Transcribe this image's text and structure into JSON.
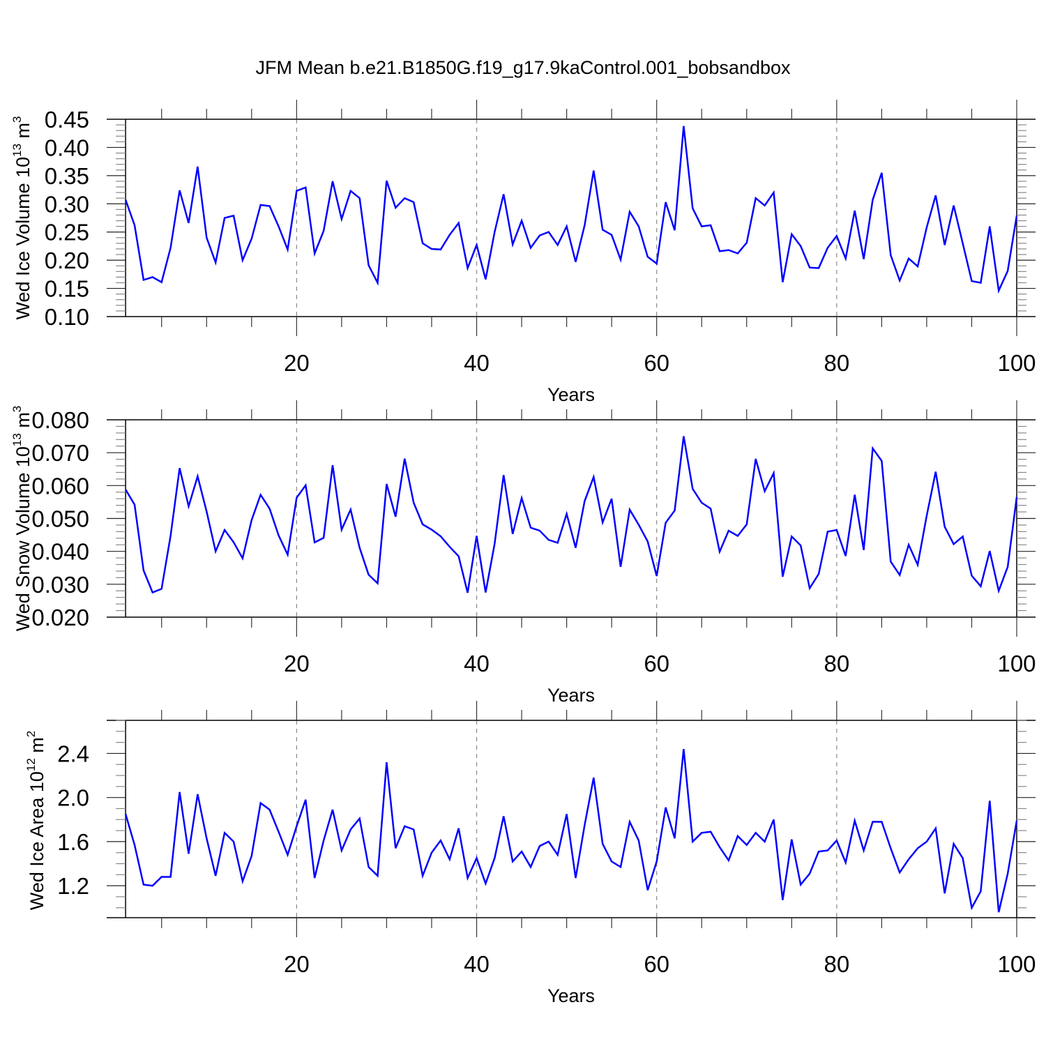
{
  "chart_data": {
    "title": "JFM Mean b.e21.B1850G.f19_g17.9kaControl.001_bobsandbox",
    "line_color": "#0000ff",
    "panels": [
      {
        "type": "line",
        "ylabel": "Wed Ice Volume 10",
        "ylabel_exp": "13",
        "ylabel_unit": " m",
        "ylabel_unit_exp": "3",
        "xlabel": "Years",
        "xlim": [
          -1.1,
          100
        ],
        "ylim": [
          0.1,
          0.45
        ],
        "yticks": [
          0.1,
          0.15,
          0.2,
          0.25,
          0.3,
          0.35,
          0.4,
          0.45
        ],
        "ytick_labels": [
          "0.10",
          "0.15",
          "0.20",
          "0.25",
          "0.30",
          "0.35",
          "0.40",
          "0.45"
        ],
        "yminor": 0.01,
        "xticks": [
          20,
          40,
          60,
          80,
          100
        ],
        "xtick_labels": [
          "20",
          "40",
          "60",
          "80",
          "100"
        ],
        "grid": "dashed vertical at major x ticks",
        "values": [
          0.307,
          0.262,
          0.165,
          0.17,
          0.161,
          0.222,
          0.324,
          0.266,
          0.366,
          0.24,
          0.196,
          0.275,
          0.279,
          0.2,
          0.238,
          0.298,
          0.296,
          0.26,
          0.219,
          0.323,
          0.329,
          0.212,
          0.252,
          0.34,
          0.273,
          0.323,
          0.31,
          0.191,
          0.16,
          0.341,
          0.293,
          0.31,
          0.303,
          0.23,
          0.22,
          0.219,
          0.245,
          0.266,
          0.186,
          0.227,
          0.166,
          0.25,
          0.317,
          0.228,
          0.27,
          0.222,
          0.244,
          0.25,
          0.227,
          0.26,
          0.197,
          0.262,
          0.359,
          0.254,
          0.245,
          0.201,
          0.286,
          0.26,
          0.206,
          0.194,
          0.303,
          0.253,
          0.438,
          0.292,
          0.26,
          0.262,
          0.216,
          0.218,
          0.212,
          0.231,
          0.31,
          0.297,
          0.32,
          0.161,
          0.246,
          0.225,
          0.187,
          0.186,
          0.222,
          0.243,
          0.203,
          0.288,
          0.202,
          0.307,
          0.355,
          0.209,
          0.164,
          0.203,
          0.189,
          0.258,
          0.315,
          0.227,
          0.297,
          0.23,
          0.163,
          0.16,
          0.26,
          0.146,
          0.181,
          0.279
        ]
      },
      {
        "type": "line",
        "ylabel": "Wed Snow Volume 10",
        "ylabel_exp": "13",
        "ylabel_unit": " m",
        "ylabel_unit_exp": "3",
        "xlabel": "Years",
        "xlim": [
          -1.1,
          100
        ],
        "ylim": [
          0.02,
          0.08
        ],
        "yticks": [
          0.02,
          0.03,
          0.04,
          0.05,
          0.06,
          0.07,
          0.08
        ],
        "ytick_labels": [
          "0.020",
          "0.030",
          "0.040",
          "0.050",
          "0.060",
          "0.070",
          "0.080"
        ],
        "yminor": 0.002,
        "xticks": [
          20,
          40,
          60,
          80,
          100
        ],
        "xtick_labels": [
          "20",
          "40",
          "60",
          "80",
          "100"
        ],
        "grid": "dashed vertical at major x ticks",
        "values": [
          0.0588,
          0.0542,
          0.0342,
          0.0275,
          0.0286,
          0.0447,
          0.0653,
          0.0537,
          0.0628,
          0.0521,
          0.04,
          0.0465,
          0.0428,
          0.0379,
          0.0495,
          0.0572,
          0.053,
          0.0449,
          0.039,
          0.0563,
          0.0601,
          0.0427,
          0.0441,
          0.0662,
          0.0466,
          0.0527,
          0.0411,
          0.0329,
          0.0303,
          0.0605,
          0.0505,
          0.0682,
          0.0548,
          0.0482,
          0.0466,
          0.0446,
          0.0414,
          0.0385,
          0.0274,
          0.0447,
          0.0275,
          0.0423,
          0.0632,
          0.0453,
          0.0562,
          0.0472,
          0.0463,
          0.0435,
          0.0426,
          0.0514,
          0.0411,
          0.0553,
          0.0626,
          0.0488,
          0.056,
          0.0353,
          0.0527,
          0.0481,
          0.043,
          0.0325,
          0.0487,
          0.0524,
          0.075,
          0.059,
          0.0548,
          0.053,
          0.0399,
          0.0463,
          0.0447,
          0.0482,
          0.0681,
          0.0583,
          0.0638,
          0.0323,
          0.0445,
          0.0418,
          0.0288,
          0.0331,
          0.046,
          0.0465,
          0.0386,
          0.0572,
          0.0404,
          0.0713,
          0.0675,
          0.0369,
          0.0328,
          0.042,
          0.0359,
          0.0508,
          0.0642,
          0.0475,
          0.0422,
          0.0445,
          0.0326,
          0.0294,
          0.0401,
          0.028,
          0.0353,
          0.0565
        ]
      },
      {
        "type": "line",
        "ylabel": "Wed Ice Area 10",
        "ylabel_exp": "12",
        "ylabel_unit": " m",
        "ylabel_unit_exp": "2",
        "xlabel": "Years",
        "xlim": [
          -1.1,
          100
        ],
        "ylim": [
          0.91,
          2.7
        ],
        "yticks": [
          1.2,
          1.6,
          2.0,
          2.4
        ],
        "ytick_labels": [
          "1.2",
          "1.6",
          "2.0",
          "2.4"
        ],
        "yminor": 0.1,
        "xticks": [
          20,
          40,
          60,
          80,
          100
        ],
        "xtick_labels": [
          "20",
          "40",
          "60",
          "80",
          "100"
        ],
        "grid": "dashed vertical at major x ticks",
        "values": [
          1.85,
          1.57,
          1.21,
          1.2,
          1.28,
          1.28,
          2.05,
          1.49,
          2.03,
          1.63,
          1.29,
          1.68,
          1.6,
          1.24,
          1.47,
          1.95,
          1.89,
          1.69,
          1.48,
          1.74,
          1.98,
          1.27,
          1.61,
          1.89,
          1.52,
          1.71,
          1.81,
          1.37,
          1.29,
          2.32,
          1.54,
          1.74,
          1.71,
          1.29,
          1.5,
          1.61,
          1.44,
          1.72,
          1.27,
          1.45,
          1.22,
          1.45,
          1.83,
          1.42,
          1.51,
          1.37,
          1.56,
          1.6,
          1.48,
          1.85,
          1.27,
          1.75,
          2.18,
          1.58,
          1.42,
          1.37,
          1.78,
          1.61,
          1.16,
          1.42,
          1.91,
          1.63,
          2.44,
          1.6,
          1.68,
          1.69,
          1.55,
          1.43,
          1.65,
          1.57,
          1.68,
          1.6,
          1.8,
          1.07,
          1.62,
          1.21,
          1.31,
          1.51,
          1.52,
          1.61,
          1.41,
          1.79,
          1.52,
          1.78,
          1.78,
          1.54,
          1.32,
          1.44,
          1.54,
          1.6,
          1.72,
          1.13,
          1.58,
          1.45,
          1.0,
          1.15,
          1.97,
          0.96,
          1.31,
          1.79
        ]
      }
    ]
  }
}
